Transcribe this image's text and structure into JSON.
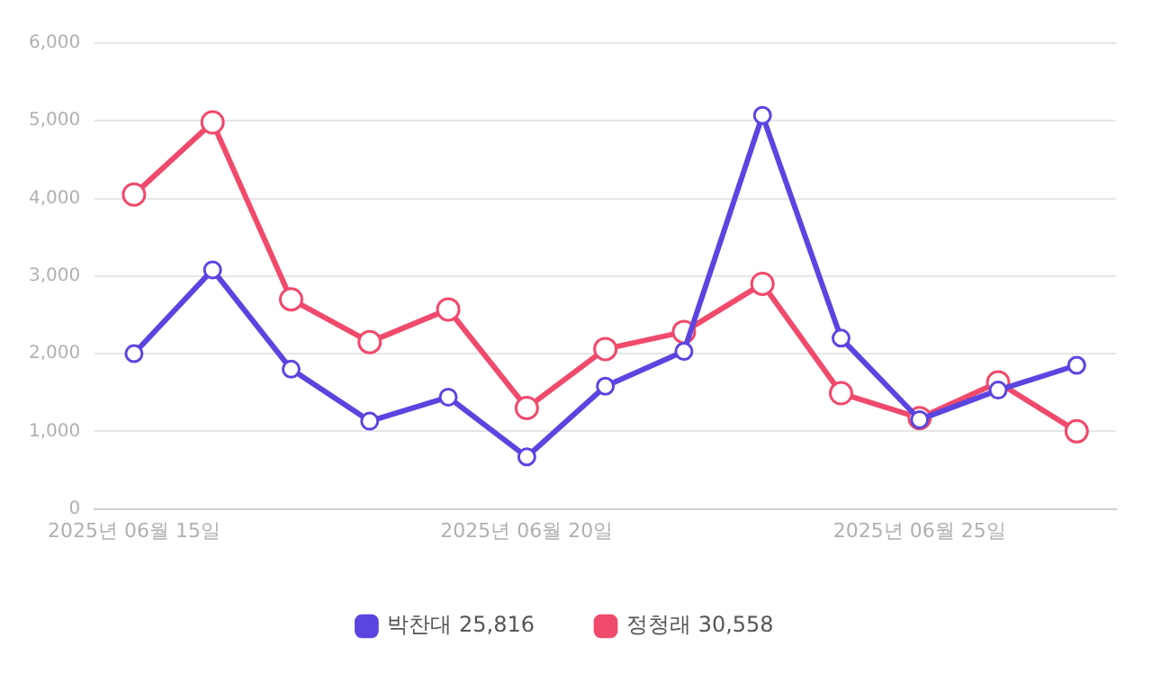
{
  "chart_data": {
    "type": "line",
    "categories": [
      "2025년 06월 15일",
      null,
      null,
      null,
      null,
      "2025년 06월 20일",
      null,
      null,
      null,
      null,
      "2025년 06월 25일",
      null,
      null
    ],
    "series": [
      {
        "name": "박찬대 25,816",
        "color": "#5a45e0",
        "values": [
          2000,
          3080,
          1800,
          1130,
          1440,
          670,
          1580,
          2030,
          5070,
          2200,
          1150,
          1530,
          1850
        ]
      },
      {
        "name": "정청래 30,558",
        "color": "#f04a6c",
        "values": [
          4050,
          4980,
          2700,
          2150,
          2570,
          1300,
          2060,
          2280,
          2900,
          1490,
          1170,
          1630,
          1000
        ]
      }
    ],
    "ylim": [
      0,
      6000
    ],
    "yticks": [
      {
        "value": 0,
        "label": "0"
      },
      {
        "value": 1000,
        "label": "1,000"
      },
      {
        "value": 2000,
        "label": "2,000"
      },
      {
        "value": 3000,
        "label": "3,000"
      },
      {
        "value": 4000,
        "label": "4,000"
      },
      {
        "value": 5000,
        "label": "5,000"
      },
      {
        "value": 6000,
        "label": "6,000"
      }
    ],
    "grid": "y",
    "legend": "bottom",
    "marker": "circle",
    "line_style": "solid"
  }
}
